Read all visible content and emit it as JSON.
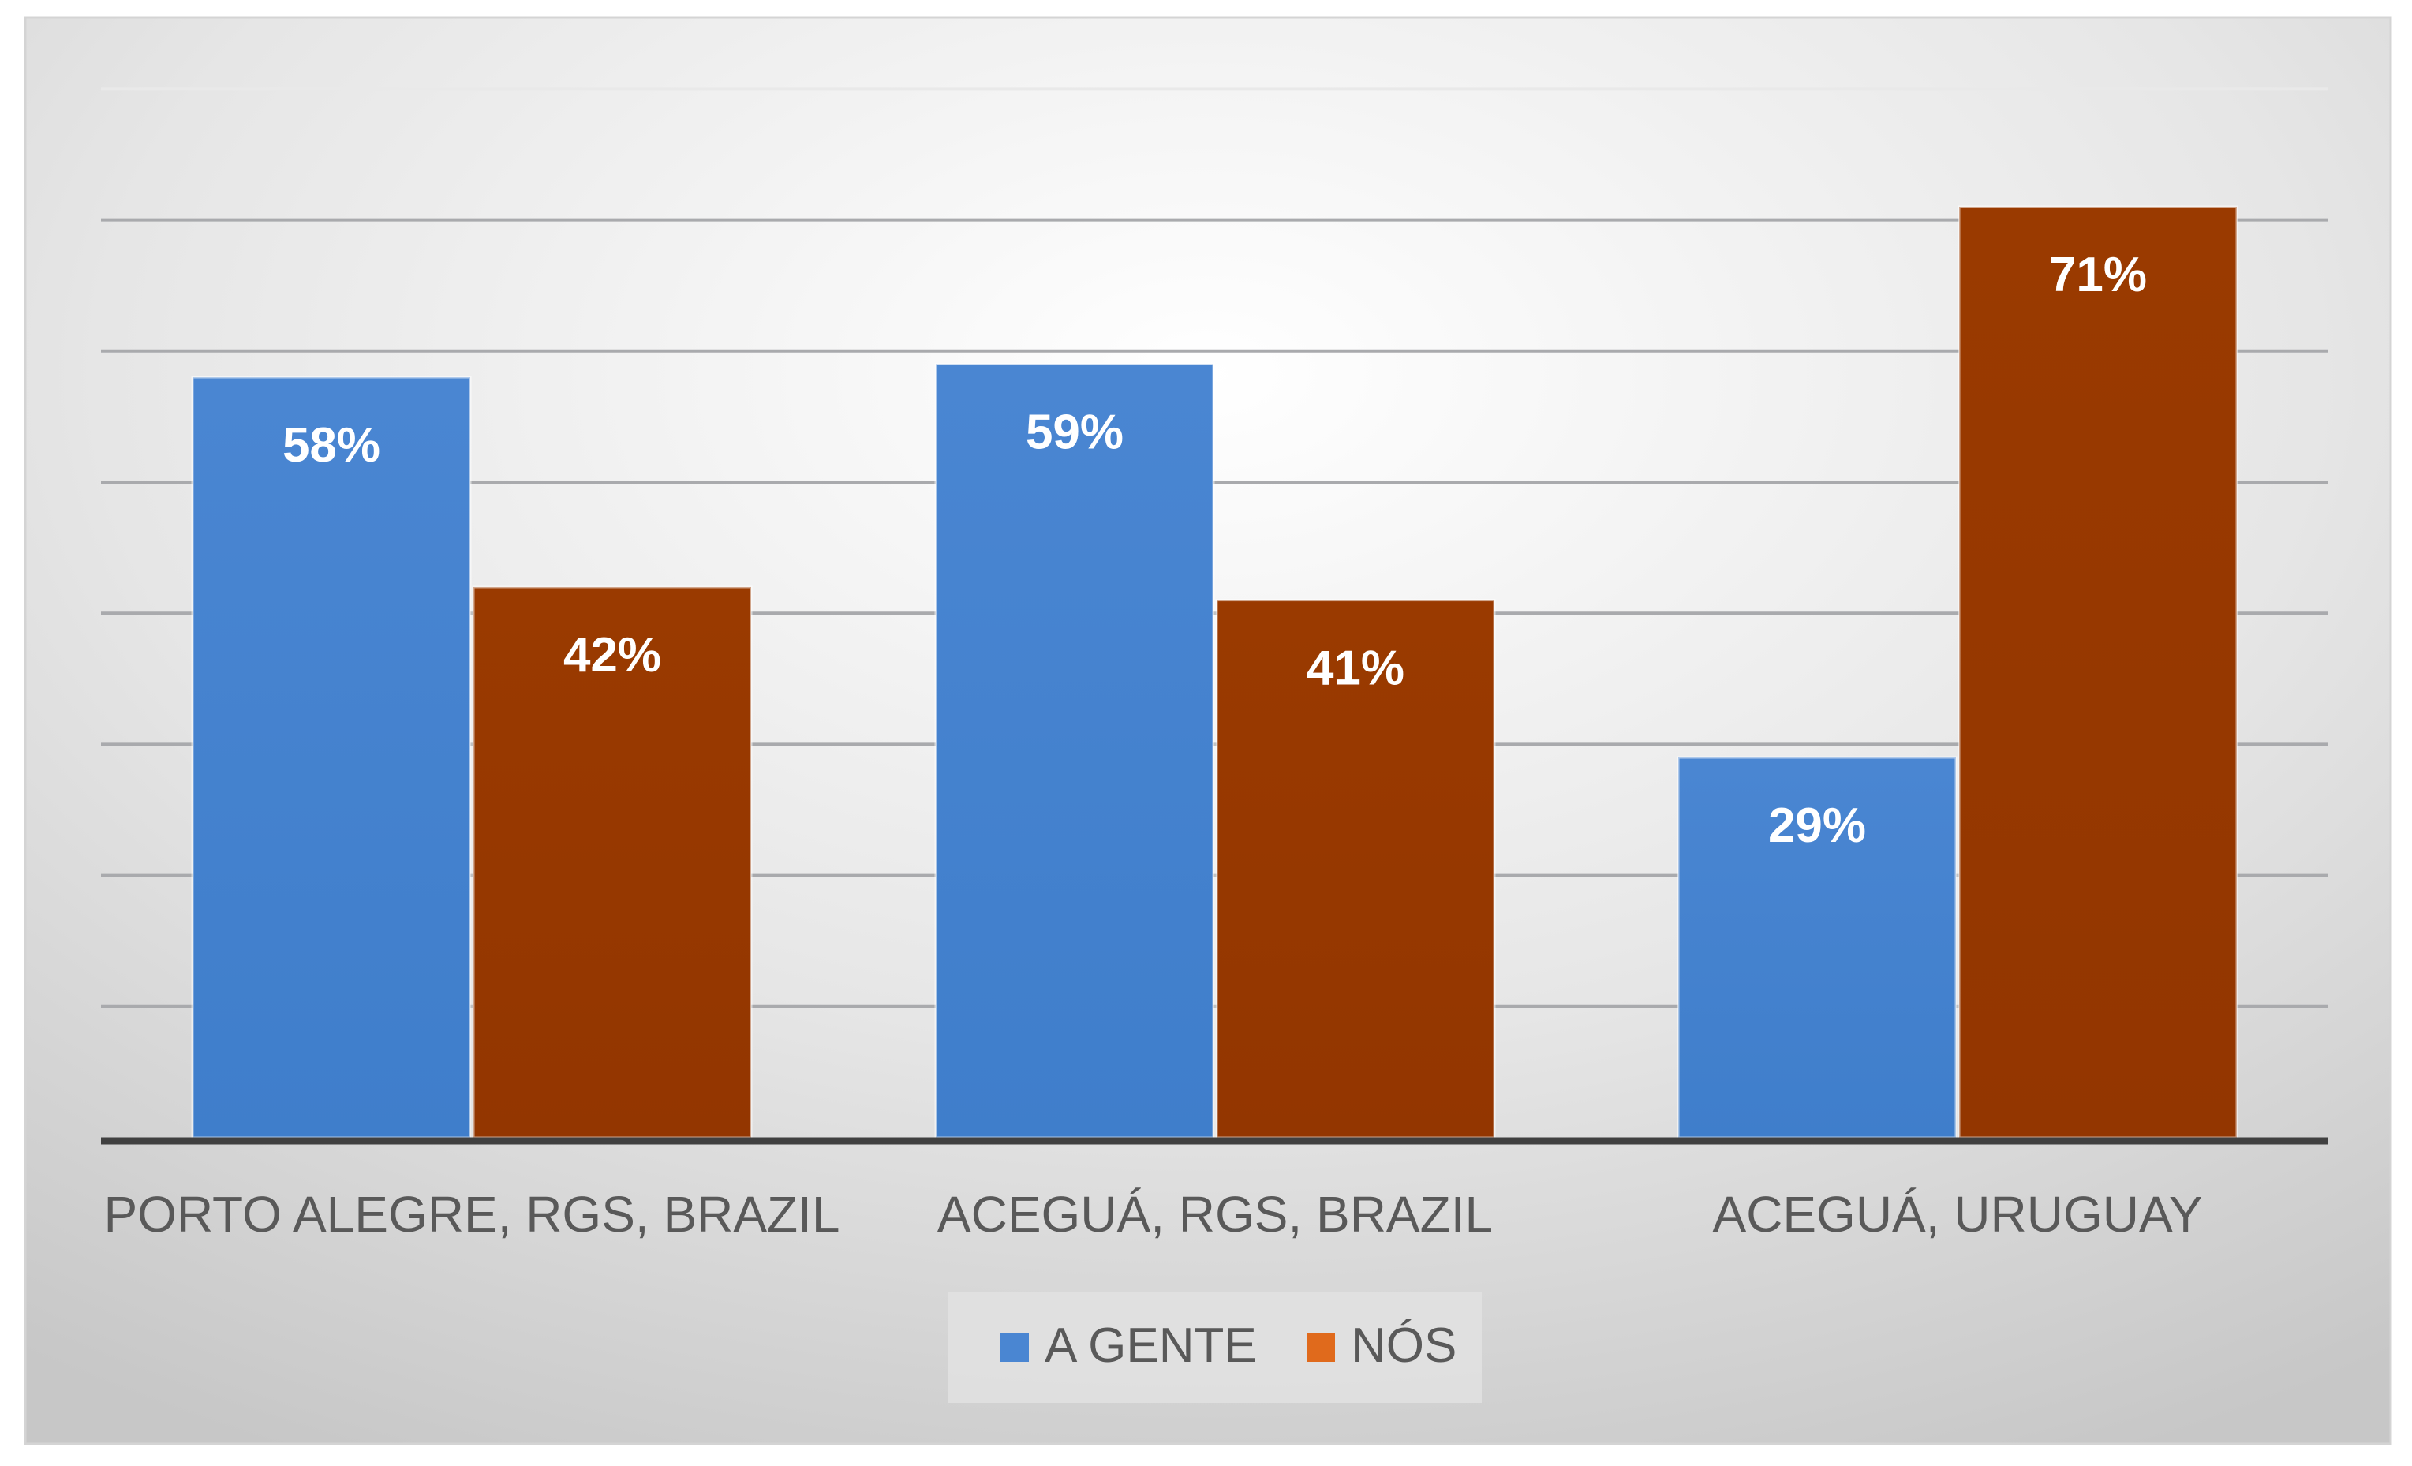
{
  "chart_data": {
    "type": "bar",
    "title": "",
    "xlabel": "",
    "ylabel": "",
    "ylim": [
      0,
      80
    ],
    "y_ticks_shown": false,
    "grid": true,
    "gridline_step": 10,
    "legend_position": "bottom",
    "categories": [
      "PORTO ALEGRE, RGS, BRAZIL",
      "ACEGUÁ, RGS, BRAZIL",
      "ACEGUÁ, URUGUAY"
    ],
    "series": [
      {
        "name": "A GENTE",
        "color": "#4a86d2",
        "values": [
          58,
          59,
          29
        ],
        "labels": [
          "58%",
          "59%",
          "29%"
        ]
      },
      {
        "name": "NÓS",
        "color": "#993800",
        "values": [
          42,
          41,
          71
        ],
        "labels": [
          "42%",
          "41%",
          "71%"
        ]
      }
    ]
  },
  "legend": {
    "swatch_colors": [
      "#4a86d2",
      "#e06a1c"
    ]
  },
  "colors": {
    "gridline": "#a9aaad",
    "axis": "#404040",
    "label_text": "#ffffff",
    "category_text": "#595959",
    "background_center": "#ffffff",
    "background_edge": "#c8c8c8"
  }
}
